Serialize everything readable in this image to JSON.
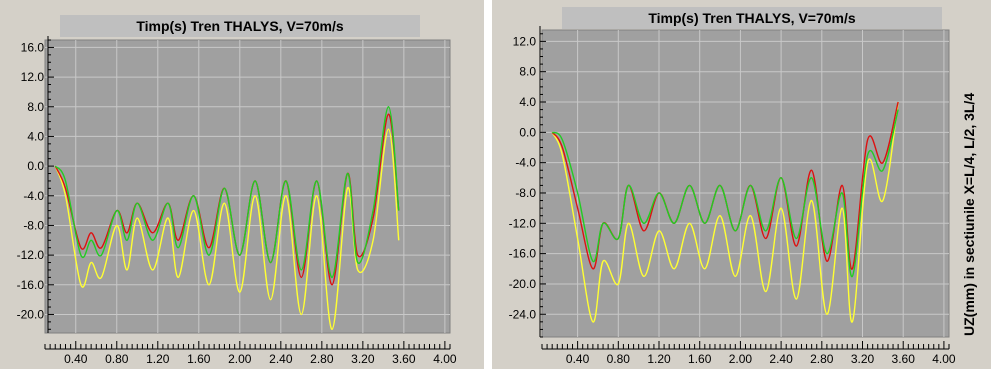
{
  "chart_data": [
    {
      "type": "line",
      "title": "Timp(s)  Tren THALYS, V=70m/s",
      "ylabel": "",
      "xlim": [
        0.1,
        4.05
      ],
      "ylim": [
        -22.5,
        17.0
      ],
      "x_ticks": [
        "0.40",
        "0.80",
        "1.20",
        "1.60",
        "2.00",
        "2.40",
        "2.80",
        "3.20",
        "3.60",
        "4.00"
      ],
      "y_ticks": [
        "16.0",
        "12.0",
        "8.0",
        "4.0",
        "0.0",
        "-4.0",
        "-8.0",
        "-12.0",
        "-16.0",
        "-20.0"
      ],
      "grid": true,
      "series": [
        {
          "color": "#ffff33",
          "x": [
            0.2,
            0.3,
            0.45,
            0.55,
            0.65,
            0.8,
            0.9,
            1.0,
            1.15,
            1.3,
            1.4,
            1.55,
            1.7,
            1.85,
            2.0,
            2.15,
            2.3,
            2.45,
            2.6,
            2.75,
            2.9,
            3.05,
            3.15,
            3.3,
            3.45,
            3.55
          ],
          "y": [
            0,
            -4,
            -16,
            -13,
            -15,
            -8,
            -14,
            -7,
            -14,
            -7,
            -15,
            -6,
            -16,
            -5,
            -17,
            -4,
            -18,
            -4,
            -20,
            -4,
            -22,
            -3,
            -14,
            -10,
            5,
            -10
          ]
        },
        {
          "color": "#dd1111",
          "x": [
            0.2,
            0.3,
            0.45,
            0.55,
            0.65,
            0.8,
            0.9,
            1.0,
            1.15,
            1.3,
            1.4,
            1.55,
            1.7,
            1.85,
            2.0,
            2.15,
            2.3,
            2.45,
            2.6,
            2.75,
            2.9,
            3.05,
            3.15,
            3.3,
            3.45,
            3.55
          ],
          "y": [
            0,
            -3,
            -11,
            -9,
            -11,
            -6,
            -9,
            -5,
            -9,
            -5,
            -10,
            -4,
            -11,
            -3,
            -12,
            -2,
            -13,
            -2,
            -15,
            -2,
            -16,
            -1,
            -12,
            -7,
            7,
            -6
          ]
        },
        {
          "color": "#22cc22",
          "x": [
            0.2,
            0.3,
            0.45,
            0.55,
            0.65,
            0.8,
            0.9,
            1.0,
            1.15,
            1.3,
            1.4,
            1.55,
            1.7,
            1.85,
            2.0,
            2.15,
            2.3,
            2.45,
            2.6,
            2.75,
            2.9,
            3.05,
            3.15,
            3.3,
            3.45,
            3.55
          ],
          "y": [
            0,
            -2,
            -12,
            -10,
            -12,
            -6,
            -10,
            -5,
            -10,
            -5,
            -11,
            -4,
            -12,
            -3,
            -12,
            -2,
            -13,
            -2,
            -14,
            -2,
            -15,
            -1,
            -13,
            -6,
            8,
            -6
          ]
        }
      ]
    },
    {
      "type": "line",
      "title": "Timp(s)  Tren THALYS, V=70m/s",
      "ylabel": "UZ(mm) in sectiunile X=L/4, L/2, 3L/4",
      "xlim": [
        0.05,
        4.05
      ],
      "ylim": [
        -27.0,
        13.5
      ],
      "x_ticks": [
        "0.40",
        "0.80",
        "1.20",
        "1.60",
        "2.00",
        "2.40",
        "2.80",
        "3.20",
        "3.60",
        "4.00"
      ],
      "y_ticks": [
        "12.0",
        "8.0",
        "4.0",
        "0.0",
        "-4.0",
        "-8.0",
        "-12.0",
        "-16.0",
        "-20.0",
        "-24.0"
      ],
      "grid": true,
      "series": [
        {
          "color": "#ffff33",
          "x": [
            0.15,
            0.25,
            0.4,
            0.55,
            0.65,
            0.8,
            0.9,
            1.05,
            1.2,
            1.35,
            1.5,
            1.65,
            1.8,
            1.95,
            2.1,
            2.25,
            2.4,
            2.55,
            2.7,
            2.85,
            3.0,
            3.1,
            3.25,
            3.4,
            3.55
          ],
          "y": [
            0,
            -3,
            -14,
            -25,
            -17,
            -20,
            -12,
            -19,
            -13,
            -18,
            -12,
            -18,
            -11,
            -19,
            -11,
            -21,
            -10,
            -22,
            -9,
            -24,
            -10,
            -25,
            -4,
            -9,
            4
          ]
        },
        {
          "color": "#dd1111",
          "x": [
            0.15,
            0.25,
            0.4,
            0.55,
            0.65,
            0.8,
            0.9,
            1.05,
            1.2,
            1.35,
            1.5,
            1.65,
            1.8,
            1.95,
            2.1,
            2.25,
            2.4,
            2.55,
            2.7,
            2.85,
            3.0,
            3.1,
            3.25,
            3.4,
            3.55
          ],
          "y": [
            0,
            -2,
            -10,
            -18,
            -12,
            -14,
            -7,
            -13,
            -8,
            -12,
            -7,
            -12,
            -7,
            -13,
            -7,
            -14,
            -6,
            -15,
            -5,
            -17,
            -7,
            -18,
            -1,
            -4,
            4
          ]
        },
        {
          "color": "#22cc22",
          "x": [
            0.15,
            0.25,
            0.4,
            0.55,
            0.65,
            0.8,
            0.9,
            1.05,
            1.2,
            1.35,
            1.5,
            1.65,
            1.8,
            1.95,
            2.1,
            2.25,
            2.4,
            2.55,
            2.7,
            2.85,
            3.0,
            3.1,
            3.25,
            3.4,
            3.55
          ],
          "y": [
            0,
            -1,
            -8,
            -17,
            -12,
            -14,
            -7,
            -12,
            -8,
            -12,
            -7,
            -12,
            -7,
            -13,
            -7,
            -13,
            -6,
            -14,
            -6,
            -16,
            -8,
            -19,
            -3,
            -5,
            3
          ]
        }
      ]
    }
  ]
}
